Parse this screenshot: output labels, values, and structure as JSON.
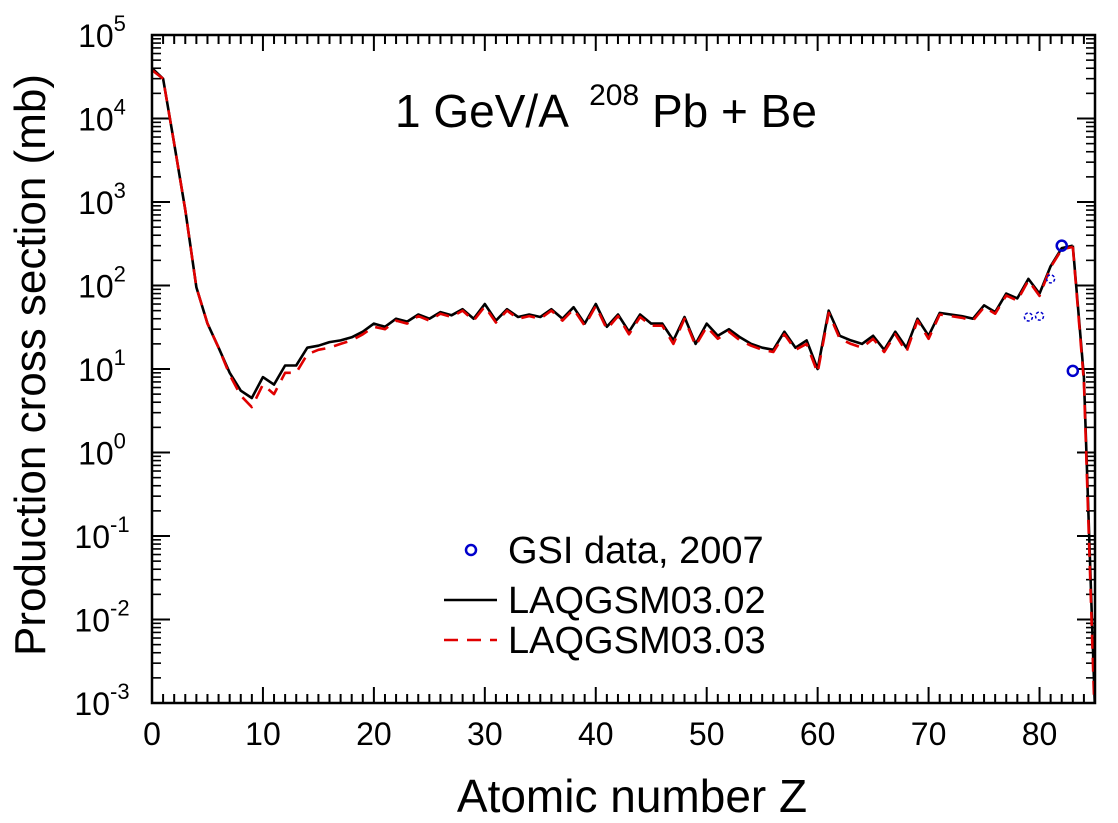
{
  "chart_data": {
    "type": "line",
    "title": "1 GeV/A",
    "title_sup": "208",
    "title_rest": "Pb + Be",
    "xlabel": "Atomic number Z",
    "ylabel": "Production cross section (mb)",
    "xlim": [
      0,
      85
    ],
    "ylim_log10": [
      -3,
      5
    ],
    "log_y": true,
    "grid": false,
    "legend_position": "bottom-center",
    "x_ticks": [
      0,
      10,
      20,
      30,
      40,
      50,
      60,
      70,
      80
    ],
    "y_tick_exponents": [
      "5",
      "4",
      "3",
      "2",
      "1",
      "0",
      "-1",
      "-2",
      "-3"
    ],
    "y_tick_base": "10",
    "legend": {
      "gsi": "GSI data, 2007",
      "v02": "LAQGSM03.02",
      "v03": "LAQGSM03.03"
    },
    "colors": {
      "gsi": "#0000cc",
      "v02": "#000000",
      "v03": "#e00000"
    },
    "series": [
      {
        "name": "LAQGSM03.02",
        "style": "solid",
        "x": [
          0,
          1,
          2,
          3,
          4,
          5,
          6,
          7,
          8,
          9,
          10,
          11,
          12,
          13,
          14,
          15,
          16,
          17,
          18,
          19,
          20,
          21,
          22,
          23,
          24,
          25,
          26,
          27,
          28,
          29,
          30,
          31,
          32,
          33,
          34,
          35,
          36,
          37,
          38,
          39,
          40,
          41,
          42,
          43,
          44,
          45,
          46,
          47,
          48,
          49,
          50,
          51,
          52,
          53,
          54,
          55,
          56,
          57,
          58,
          59,
          60,
          61,
          62,
          63,
          64,
          65,
          66,
          67,
          68,
          69,
          70,
          71,
          72,
          73,
          74,
          75,
          76,
          77,
          78,
          79,
          80,
          81,
          82,
          83,
          84,
          85
        ],
        "y": [
          40000,
          30000,
          5000,
          800,
          95,
          35,
          18,
          9,
          5.5,
          4.5,
          8,
          6.5,
          11,
          11,
          18,
          19,
          21,
          22,
          24,
          28,
          35,
          32,
          40,
          37,
          45,
          40,
          48,
          44,
          52,
          40,
          60,
          38,
          52,
          42,
          45,
          42,
          52,
          40,
          55,
          35,
          60,
          32,
          45,
          28,
          45,
          35,
          35,
          22,
          42,
          20,
          35,
          25,
          30,
          24,
          20,
          18,
          17,
          28,
          18,
          22,
          10,
          50,
          25,
          22,
          20,
          25,
          17,
          28,
          18,
          40,
          25,
          47,
          45,
          43,
          40,
          58,
          48,
          80,
          70,
          120,
          80,
          170,
          280,
          300,
          8,
          0.0008
        ],
        "break_after_index": 83
      },
      {
        "name": "LAQGSM03.03",
        "style": "dashed",
        "x": [
          0,
          1,
          2,
          3,
          4,
          5,
          6,
          7,
          8,
          9,
          10,
          11,
          12,
          13,
          14,
          15,
          16,
          17,
          18,
          19,
          20,
          21,
          22,
          23,
          24,
          25,
          26,
          27,
          28,
          29,
          30,
          31,
          32,
          33,
          34,
          35,
          36,
          37,
          38,
          39,
          40,
          41,
          42,
          43,
          44,
          45,
          46,
          47,
          48,
          49,
          50,
          51,
          52,
          53,
          54,
          55,
          56,
          57,
          58,
          59,
          60,
          61,
          62,
          63,
          64,
          65,
          66,
          67,
          68,
          69,
          70,
          71,
          72,
          73,
          74,
          75,
          76,
          77,
          78,
          79,
          80,
          81,
          82,
          83,
          84,
          85
        ],
        "y": [
          38000,
          30000,
          5000,
          800,
          95,
          35,
          18,
          8.5,
          4.8,
          3.5,
          6.5,
          5,
          9,
          9,
          15,
          17,
          18,
          20,
          22,
          26,
          32,
          30,
          38,
          35,
          43,
          38,
          46,
          42,
          50,
          38,
          56,
          36,
          50,
          40,
          43,
          40,
          50,
          38,
          52,
          33,
          57,
          30,
          43,
          26,
          42,
          33,
          33,
          20,
          40,
          19,
          32,
          23,
          28,
          22,
          19,
          17,
          16,
          26,
          17,
          20,
          9,
          47,
          23,
          20,
          18,
          23,
          16,
          26,
          16,
          38,
          23,
          45,
          43,
          41,
          38,
          55,
          46,
          76,
          66,
          115,
          75,
          165,
          270,
          290,
          7,
          0.0005
        ],
        "break_after_index": 83
      },
      {
        "name": "GSI data, 2007",
        "style": "markers",
        "x": [
          79,
          80,
          81,
          82,
          83
        ],
        "y": [
          42,
          43,
          120,
          300,
          9.5
        ]
      }
    ]
  }
}
